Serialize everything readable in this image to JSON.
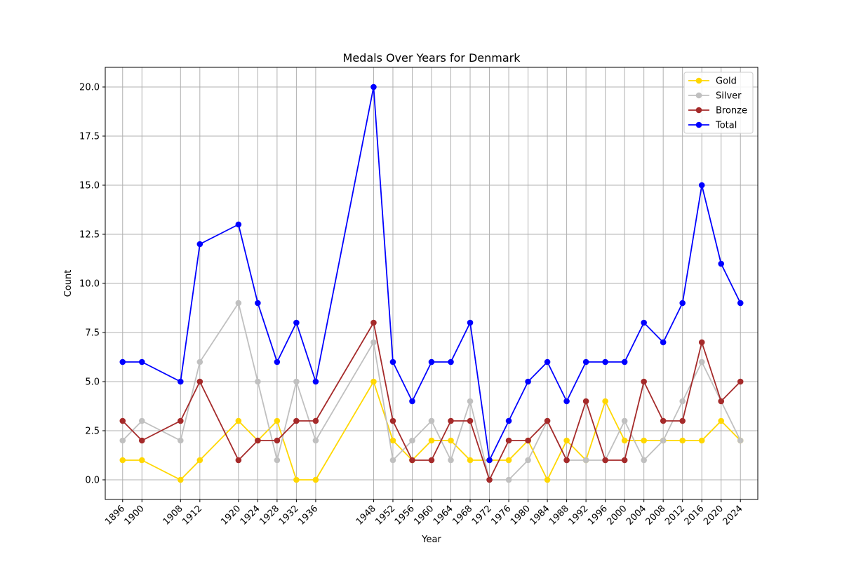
{
  "chart_data": {
    "type": "line",
    "title": "Medals Over Years for Denmark",
    "xlabel": "Year",
    "ylabel": "Count",
    "x": [
      1896,
      1900,
      1908,
      1912,
      1920,
      1924,
      1928,
      1932,
      1936,
      1948,
      1952,
      1956,
      1960,
      1964,
      1968,
      1972,
      1976,
      1980,
      1984,
      1988,
      1992,
      1996,
      2000,
      2004,
      2008,
      2012,
      2016,
      2020,
      2024
    ],
    "xticks": [
      "1896",
      "1900",
      "1908",
      "1912",
      "1920",
      "1924",
      "1928",
      "1932",
      "1936",
      "1948",
      "1952",
      "1956",
      "1960",
      "1964",
      "1968",
      "1972",
      "1976",
      "1980",
      "1984",
      "1988",
      "1992",
      "1996",
      "2000",
      "2004",
      "2008",
      "2012",
      "2016",
      "2020",
      "2024"
    ],
    "yticks": [
      "0.0",
      "2.5",
      "5.0",
      "7.5",
      "10.0",
      "12.5",
      "15.0",
      "17.5",
      "20.0"
    ],
    "ylim": [
      -1,
      21
    ],
    "grid": true,
    "legend_position": "top-right",
    "series": [
      {
        "name": "Gold",
        "color": "#ffd700",
        "values": [
          1,
          1,
          0,
          1,
          3,
          2,
          3,
          0,
          0,
          5,
          2,
          1,
          2,
          2,
          1,
          1,
          1,
          2,
          0,
          2,
          1,
          4,
          2,
          2,
          2,
          2,
          2,
          3,
          2
        ]
      },
      {
        "name": "Silver",
        "color": "#c0c0c0",
        "values": [
          2,
          3,
          2,
          6,
          9,
          5,
          1,
          5,
          2,
          7,
          1,
          2,
          3,
          1,
          4,
          0,
          0,
          1,
          3,
          1,
          1,
          1,
          3,
          1,
          2,
          4,
          6,
          4,
          2
        ]
      },
      {
        "name": "Bronze",
        "color": "#a52a2a",
        "values": [
          3,
          2,
          3,
          5,
          1,
          2,
          2,
          3,
          3,
          8,
          3,
          1,
          1,
          3,
          3,
          0,
          2,
          2,
          3,
          1,
          4,
          1,
          1,
          5,
          3,
          3,
          7,
          4,
          5
        ]
      },
      {
        "name": "Total",
        "color": "#0000ff",
        "values": [
          6,
          6,
          5,
          12,
          13,
          9,
          6,
          8,
          5,
          20,
          6,
          4,
          6,
          6,
          8,
          1,
          3,
          5,
          6,
          4,
          6,
          6,
          6,
          8,
          7,
          9,
          15,
          11,
          9
        ]
      }
    ]
  }
}
